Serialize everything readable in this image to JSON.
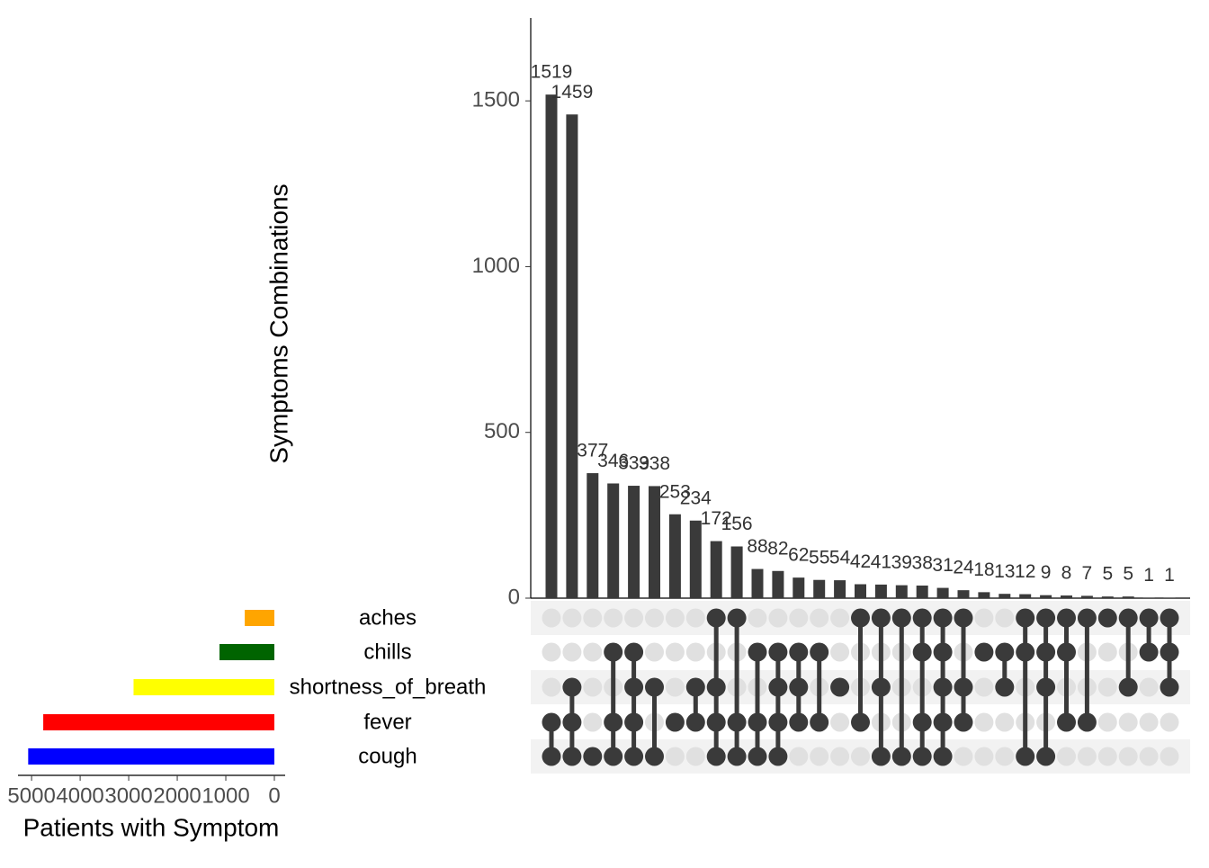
{
  "chart_data": {
    "type": "upset",
    "y_label": "Symptoms Combinations",
    "x_label": "Patients with Symptom",
    "sets": [
      {
        "name": "aches",
        "color": "#ffa500",
        "size": 610
      },
      {
        "name": "chills",
        "color": "#006400",
        "size": 1130
      },
      {
        "name": "shortness_of_breath",
        "color": "#ffff00",
        "size": 2900
      },
      {
        "name": "fever",
        "color": "#ff0000",
        "size": 4760
      },
      {
        "name": "cough",
        "color": "#0000ff",
        "size": 5070
      }
    ],
    "intersections": {
      "values": [
        1519,
        1459,
        377,
        346,
        339,
        338,
        253,
        234,
        172,
        156,
        88,
        82,
        62,
        55,
        54,
        42,
        41,
        39,
        38,
        31,
        24,
        18,
        13,
        12,
        9,
        8,
        7,
        5,
        5,
        1,
        1
      ],
      "members": [
        [
          3,
          4
        ],
        [
          2,
          3,
          4
        ],
        [
          4
        ],
        [
          1,
          3,
          4
        ],
        [
          1,
          2,
          3,
          4
        ],
        [
          2,
          4
        ],
        [
          3
        ],
        [
          2,
          3
        ],
        [
          0,
          2,
          3,
          4
        ],
        [
          0,
          3,
          4
        ],
        [
          1,
          3,
          4
        ],
        [
          1,
          2,
          3,
          4
        ],
        [
          1,
          2,
          3
        ],
        [
          1,
          3
        ],
        [
          2
        ],
        [
          0,
          3
        ],
        [
          0,
          2,
          4
        ],
        [
          0,
          4
        ],
        [
          0,
          1,
          3,
          4
        ],
        [
          0,
          1,
          2,
          3,
          4
        ],
        [
          0,
          2,
          3
        ],
        [
          1
        ],
        [
          1,
          2
        ],
        [
          0,
          1,
          4
        ],
        [
          0,
          1,
          2,
          4
        ],
        [
          0,
          1,
          3
        ],
        [
          0,
          3
        ],
        [
          0
        ],
        [
          0,
          2
        ],
        [
          0,
          1
        ],
        [
          0,
          1,
          2
        ]
      ]
    },
    "ylim": [
      0,
      1750
    ],
    "yticks": [
      0,
      500,
      1000,
      1500
    ],
    "xlim": [
      0,
      5280
    ],
    "xticks": [
      0,
      1000,
      2000,
      3000,
      4000,
      5000
    ],
    "bar_color": "#3a3a3a"
  }
}
